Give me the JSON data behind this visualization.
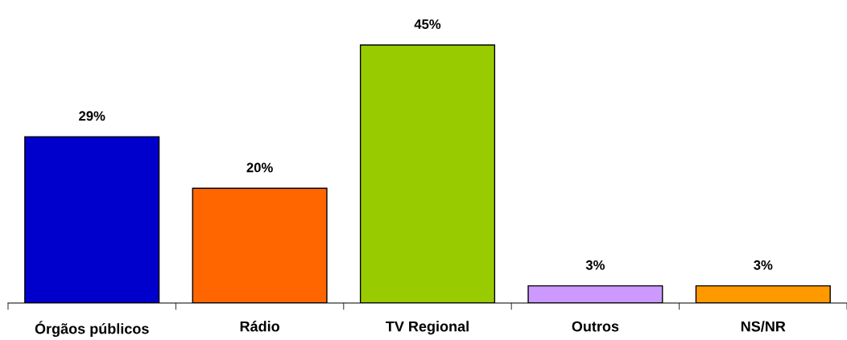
{
  "chart_data": {
    "type": "bar",
    "categories": [
      "Órgãos públicos",
      "Rádio",
      "TV Regional",
      "Outros",
      "NS/NR"
    ],
    "values": [
      29,
      20,
      45,
      3,
      3
    ],
    "colors": [
      "#0000cc",
      "#ff6600",
      "#99cc00",
      "#cc99ff",
      "#ff9900"
    ],
    "value_labels": [
      "29%",
      "20%",
      "45%",
      "3%",
      "3%"
    ],
    "grid": false,
    "legend": false
  }
}
